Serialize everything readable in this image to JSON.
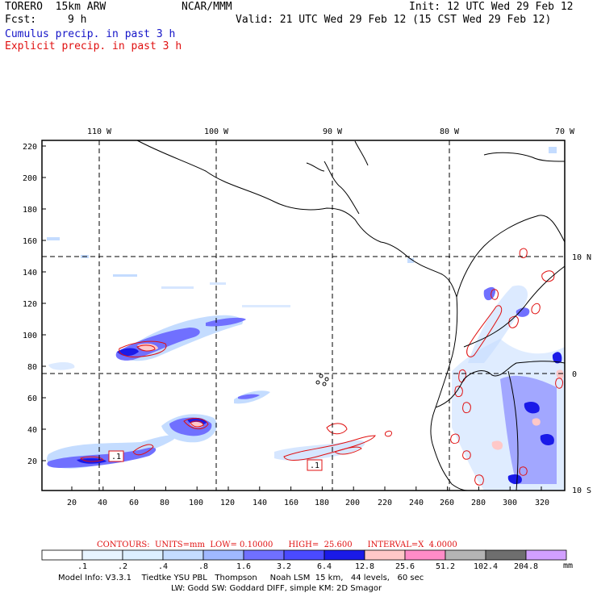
{
  "header": {
    "model": "TORERO  15km ARW",
    "org": "NCAR/MMM",
    "init": "Init: 12 UTC Wed 29 Feb 12",
    "fcst_label": "Fcst:",
    "fcst_value": "9 h",
    "valid": "Valid: 21 UTC Wed 29 Feb 12 (15 CST Wed 29 Feb 12)",
    "legend_cumulus": "Cumulus precip. in past 3 h",
    "legend_explicit": "Explicit precip. in past 3 h"
  },
  "map": {
    "lon_labels": [
      "110 W",
      "100 W",
      "90 W",
      "80 W",
      "70 W"
    ],
    "lat_labels": [
      "10 N",
      "0",
      "10 S"
    ],
    "x_ticks": [
      "20",
      "40",
      "60",
      "80",
      "100",
      "120",
      "140",
      "160",
      "180",
      "200",
      "220",
      "240",
      "260",
      "280",
      "300",
      "320"
    ],
    "y_ticks": [
      "220",
      "200",
      "180",
      "160",
      "140",
      "120",
      "100",
      "80",
      "60",
      "40",
      "20"
    ],
    "box_labels": [
      ".1",
      ".1"
    ]
  },
  "contours_line": "CONTOURS:  UNITS=mm  LOW= 0.10000      HIGH=  25.600      INTERVAL=X  4.0000",
  "colorbar": {
    "labels": [
      ".1",
      ".2",
      ".4",
      ".8",
      "1.6",
      "3.2",
      "6.4",
      "12.8",
      "25.6",
      "51.2",
      "102.4",
      "204.8"
    ],
    "unit": "mm",
    "colors": [
      "#ffffff",
      "#ffffff",
      "#e8f4ff",
      "#dcefff",
      "#c4dcff",
      "#a0b8ff",
      "#7070ff",
      "#4a4aff",
      "#1a1ae8",
      "#ffc8c8",
      "#ff8cc8",
      "#b4b4b4",
      "#6e6e6e",
      "#d2a0ff"
    ]
  },
  "footer": {
    "line1": "Model Info: V3.3.1    Tiedtke YSU PBL   Thompson     Noah LSM  15 km,   44 levels,   60 sec",
    "line2": "LW: Godd SW: Goddard DIFF, simple KM: 2D Smagor"
  },
  "colors": {
    "cumulus": "#1515c8",
    "explicit": "#e01010",
    "precip_light": "#c4dcff",
    "precip_mid": "#7070ff",
    "precip_heavy": "#1a1ae8",
    "precip_pink": "#ffc8c8"
  }
}
